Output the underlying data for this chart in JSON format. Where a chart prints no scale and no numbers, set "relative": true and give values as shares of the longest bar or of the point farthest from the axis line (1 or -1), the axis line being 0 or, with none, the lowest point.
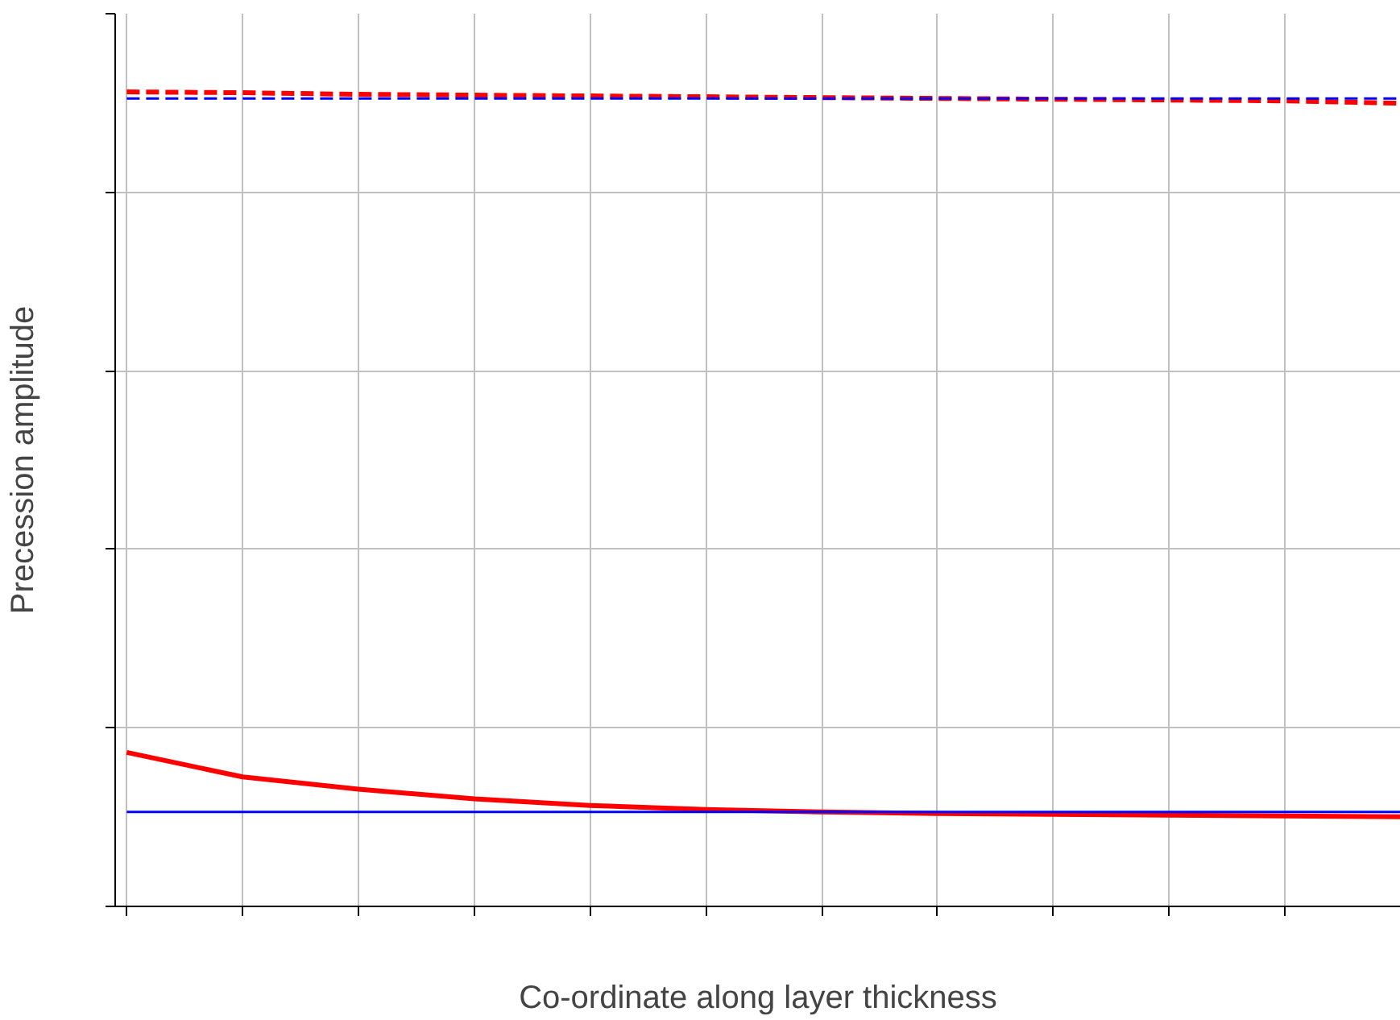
{
  "chart_data": {
    "type": "line",
    "relative": true,
    "xlabel": "Co-ordinate along layer thickness",
    "ylabel": "Precession amplitude",
    "categories": [
      null,
      null,
      null,
      null,
      null,
      null,
      null,
      null,
      null,
      null,
      null,
      null
    ],
    "grid": true,
    "tick_labels": false,
    "marker": "none",
    "series": [
      {
        "color": "#ff0000",
        "line_style": "dashed",
        "values": [
          1,
          0.999,
          0.997,
          0.996,
          0.995,
          0.994,
          0.993,
          0.992,
          0.991,
          0.99,
          0.989,
          0.986
        ]
      },
      {
        "color": "#0000ff",
        "line_style": "dashed",
        "values": [
          0.992,
          0.992,
          0.992,
          0.992,
          0.992,
          0.992,
          0.992,
          0.992,
          0.992,
          0.992,
          0.992,
          0.992
        ]
      },
      {
        "color": "#ff0000",
        "line_style": "solid",
        "values": [
          0.189,
          0.159,
          0.144,
          0.132,
          0.124,
          0.119,
          0.116,
          0.114,
          0.113,
          0.112,
          0.111,
          0.11
        ]
      },
      {
        "color": "#0000ff",
        "line_style": "solid",
        "values": [
          0.116,
          0.116,
          0.116,
          0.116,
          0.116,
          0.116,
          0.116,
          0.116,
          0.116,
          0.116,
          0.116,
          0.116
        ]
      }
    ]
  }
}
